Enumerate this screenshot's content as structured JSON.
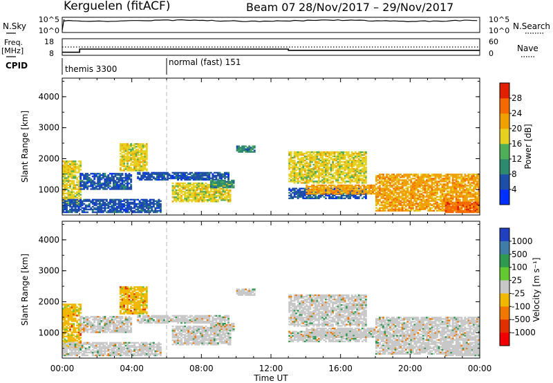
{
  "header": {
    "station": "Kerguelen (fitACF)",
    "beam": "Beam 07",
    "date_range": "28/Nov/2017 – 29/Nov/2017"
  },
  "summary": {
    "nsky_label": "N.Sky",
    "nsky_ticks": [
      "10^5",
      "10^0"
    ],
    "nsearch_label": "N.Search",
    "nsearch_ticks": [
      "10^5",
      "10^0"
    ],
    "freq_label_1": "Freq.",
    "freq_label_2": "[MHz]",
    "freq_ticks": [
      "18",
      "8"
    ],
    "nave_label": "Nave",
    "nave_ticks": [
      "60",
      "0"
    ],
    "cpid_label": "CPID",
    "cpid_modes": [
      {
        "label": "themis 3300",
        "start_h": 0
      },
      {
        "label": "normal (fast) 151",
        "start_h": 6
      }
    ],
    "freq_steps": [
      {
        "start_h": 0,
        "end_h": 1,
        "value": 9.2
      },
      {
        "start_h": 1,
        "end_h": 13,
        "value": 11.5
      },
      {
        "start_h": 13,
        "end_h": 24,
        "value": 10.6
      }
    ],
    "nave_value": 30
  },
  "axes": {
    "time_ticks": [
      "00:00",
      "04:00",
      "08:00",
      "12:00",
      "16:00",
      "20:00",
      "00:00"
    ],
    "xlabel": "Time UT",
    "range_ticks": [
      "1000",
      "2000",
      "3000",
      "4000"
    ],
    "ylabel": "Slant Range [km]"
  },
  "power_colorbar": {
    "label": "Power [dB]",
    "ticks": [
      "4",
      "8",
      "12",
      "16",
      "20",
      "24",
      "28"
    ],
    "colors": [
      "#0030ff",
      "#1e4ea8",
      "#2e8a6e",
      "#4fae58",
      "#e6d020",
      "#f0a000",
      "#f46a00",
      "#e02000"
    ]
  },
  "velocity_colorbar": {
    "label": "Velocity [m s⁻¹]",
    "ticks": [
      "1000",
      "500",
      "100",
      "25",
      "-25",
      "-100",
      "-500",
      "-1000"
    ],
    "colors": [
      "#2040c0",
      "#3f7ca8",
      "#2e9a50",
      "#64c830",
      "#c8c8c8",
      "#f0b800",
      "#f07800",
      "#e03000",
      "#f00000"
    ]
  },
  "chart_data": {
    "type": "heatmap",
    "x_range_hours": [
      0,
      24
    ],
    "y_range_km": [
      180,
      4600
    ],
    "panels": [
      "power",
      "velocity"
    ],
    "regions": [
      {
        "t0": 0.0,
        "t1": 1.0,
        "r0": 500,
        "r1": 1900,
        "power_db": 20,
        "velocity": -100
      },
      {
        "t0": 0.0,
        "t1": 5.6,
        "r0": 250,
        "r1": 700,
        "power_db": 8,
        "velocity": 25
      },
      {
        "t0": 1.0,
        "t1": 4.0,
        "r0": 1000,
        "r1": 1500,
        "power_db": 8,
        "velocity": 25
      },
      {
        "t0": 3.3,
        "t1": 4.8,
        "r0": 1600,
        "r1": 2500,
        "power_db": 20,
        "velocity": -100
      },
      {
        "t0": 4.3,
        "t1": 9.5,
        "r0": 1300,
        "r1": 1550,
        "power_db": 8,
        "velocity": 25
      },
      {
        "t0": 6.3,
        "t1": 9.6,
        "r0": 600,
        "r1": 1200,
        "power_db": 20,
        "velocity": 25
      },
      {
        "t0": 8.5,
        "t1": 9.8,
        "r0": 1050,
        "r1": 1300,
        "power_db": 12,
        "velocity": 25
      },
      {
        "t0": 10.0,
        "t1": 11.0,
        "r0": 2200,
        "r1": 2400,
        "power_db": 12,
        "velocity": 25
      },
      {
        "t0": 13.0,
        "t1": 17.5,
        "r0": 1200,
        "r1": 2200,
        "power_db": 20,
        "velocity": 25
      },
      {
        "t0": 13.0,
        "t1": 17.5,
        "r0": 700,
        "r1": 1050,
        "power_db": 8,
        "velocity": 25
      },
      {
        "t0": 14.0,
        "t1": 18.0,
        "r0": 850,
        "r1": 1150,
        "power_db": 24,
        "velocity": 25
      },
      {
        "t0": 18.0,
        "t1": 24.0,
        "r0": 300,
        "r1": 1500,
        "power_db": 24,
        "velocity": 25
      },
      {
        "t0": 22.0,
        "t1": 24.0,
        "r0": 250,
        "r1": 600,
        "power_db": 28,
        "velocity": 25
      }
    ]
  }
}
